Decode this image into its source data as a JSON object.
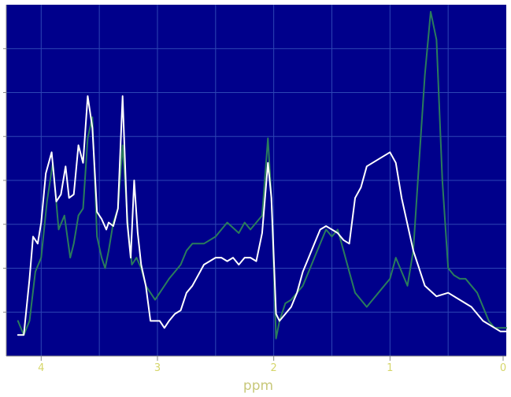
{
  "chart_data": {
    "type": "line",
    "title": "",
    "xlabel": "ppm",
    "ylabel": "",
    "xlim": [
      4.3,
      0
    ],
    "ylim": [
      0,
      1.0
    ],
    "x_reversed": true,
    "grid": true,
    "x_ticks": [
      4,
      3,
      2,
      1,
      0
    ],
    "x_tick_labels": [
      "4",
      "3",
      "2",
      "1",
      "0"
    ],
    "colors": {
      "plot_background": "#00008b",
      "grid": "#2d46b4",
      "axis": "#888888",
      "label": "#c8c87a"
    },
    "series": [
      {
        "color": "#ffffff",
        "x": [
          4.2,
          4.15,
          4.1,
          4.07,
          4.03,
          4.0,
          3.96,
          3.91,
          3.87,
          3.83,
          3.79,
          3.76,
          3.72,
          3.68,
          3.64,
          3.6,
          3.56,
          3.52,
          3.48,
          3.44,
          3.42,
          3.38,
          3.34,
          3.3,
          3.26,
          3.23,
          3.2,
          3.17,
          3.14,
          3.1,
          3.06,
          3.02,
          2.98,
          2.94,
          2.9,
          2.85,
          2.8,
          2.75,
          2.7,
          2.6,
          2.5,
          2.45,
          2.4,
          2.35,
          2.3,
          2.25,
          2.2,
          2.15,
          2.1,
          2.05,
          2.02,
          1.98,
          1.95,
          1.9,
          1.85,
          1.8,
          1.75,
          1.7,
          1.65,
          1.6,
          1.55,
          1.5,
          1.45,
          1.4,
          1.35,
          1.3,
          1.25,
          1.2,
          1.1,
          1.0,
          0.95,
          0.9,
          0.8,
          0.7,
          0.6,
          0.5,
          0.4,
          0.3,
          0.25,
          0.2,
          0.1,
          0.05,
          0.0
        ],
        "y": [
          0.06,
          0.06,
          0.22,
          0.34,
          0.32,
          0.38,
          0.52,
          0.58,
          0.44,
          0.46,
          0.54,
          0.45,
          0.46,
          0.6,
          0.55,
          0.74,
          0.65,
          0.41,
          0.39,
          0.36,
          0.38,
          0.37,
          0.42,
          0.74,
          0.38,
          0.28,
          0.5,
          0.35,
          0.26,
          0.2,
          0.1,
          0.1,
          0.1,
          0.08,
          0.1,
          0.12,
          0.13,
          0.18,
          0.2,
          0.26,
          0.28,
          0.28,
          0.27,
          0.28,
          0.26,
          0.28,
          0.28,
          0.27,
          0.35,
          0.55,
          0.45,
          0.12,
          0.1,
          0.12,
          0.14,
          0.18,
          0.24,
          0.28,
          0.32,
          0.36,
          0.37,
          0.36,
          0.35,
          0.33,
          0.32,
          0.45,
          0.48,
          0.54,
          0.56,
          0.58,
          0.55,
          0.45,
          0.3,
          0.2,
          0.17,
          0.18,
          0.16,
          0.14,
          0.12,
          0.1,
          0.08,
          0.07,
          0.07
        ]
      },
      {
        "color": "#2a7c5c",
        "x": [
          4.2,
          4.15,
          4.1,
          4.05,
          4.0,
          3.95,
          3.9,
          3.85,
          3.8,
          3.75,
          3.72,
          3.68,
          3.64,
          3.6,
          3.56,
          3.52,
          3.48,
          3.45,
          3.42,
          3.38,
          3.34,
          3.3,
          3.25,
          3.22,
          3.18,
          3.14,
          3.1,
          3.06,
          3.02,
          2.98,
          2.94,
          2.9,
          2.85,
          2.8,
          2.75,
          2.7,
          2.6,
          2.5,
          2.45,
          2.4,
          2.3,
          2.25,
          2.2,
          2.15,
          2.1,
          2.05,
          2.02,
          1.98,
          1.95,
          1.9,
          1.85,
          1.8,
          1.75,
          1.7,
          1.65,
          1.6,
          1.55,
          1.5,
          1.45,
          1.4,
          1.35,
          1.3,
          1.25,
          1.2,
          1.15,
          1.1,
          1.0,
          0.95,
          0.9,
          0.85,
          0.8,
          0.75,
          0.7,
          0.65,
          0.6,
          0.55,
          0.5,
          0.45,
          0.4,
          0.35,
          0.3,
          0.25,
          0.2,
          0.15,
          0.1,
          0.05,
          0.0
        ],
        "y": [
          0.1,
          0.06,
          0.1,
          0.24,
          0.28,
          0.44,
          0.55,
          0.36,
          0.4,
          0.28,
          0.32,
          0.4,
          0.42,
          0.62,
          0.68,
          0.34,
          0.28,
          0.25,
          0.3,
          0.38,
          0.42,
          0.6,
          0.35,
          0.26,
          0.28,
          0.25,
          0.2,
          0.18,
          0.16,
          0.18,
          0.2,
          0.22,
          0.24,
          0.26,
          0.3,
          0.32,
          0.32,
          0.34,
          0.36,
          0.38,
          0.35,
          0.38,
          0.36,
          0.38,
          0.4,
          0.62,
          0.45,
          0.05,
          0.1,
          0.15,
          0.16,
          0.18,
          0.2,
          0.24,
          0.28,
          0.32,
          0.36,
          0.34,
          0.36,
          0.3,
          0.24,
          0.18,
          0.16,
          0.14,
          0.16,
          0.18,
          0.22,
          0.28,
          0.24,
          0.2,
          0.3,
          0.55,
          0.8,
          0.98,
          0.9,
          0.5,
          0.25,
          0.23,
          0.22,
          0.22,
          0.2,
          0.18,
          0.14,
          0.1,
          0.08,
          0.08,
          0.08
        ]
      }
    ]
  }
}
